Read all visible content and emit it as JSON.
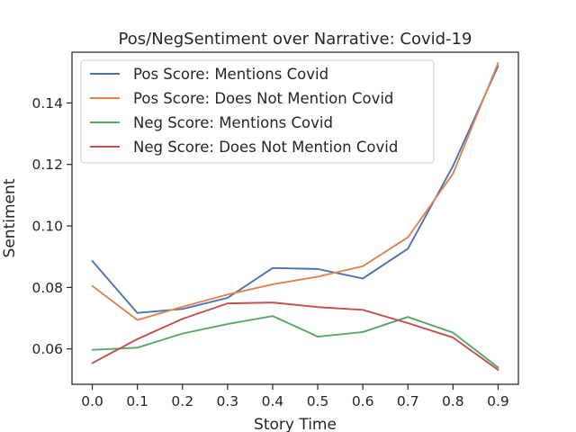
{
  "chart_data": {
    "type": "line",
    "title": "Pos/NegSentiment over Narrative: Covid-19",
    "xlabel": "Story Time",
    "ylabel": "Sentiment",
    "x": [
      0.0,
      0.1,
      0.2,
      0.3,
      0.4,
      0.5,
      0.6,
      0.7,
      0.8,
      0.9
    ],
    "xlim": [
      -0.045,
      0.945
    ],
    "ylim": [
      0.0485,
      0.1565
    ],
    "xticks": [
      "0.0",
      "0.1",
      "0.2",
      "0.3",
      "0.4",
      "0.5",
      "0.6",
      "0.7",
      "0.8",
      "0.9"
    ],
    "yticks": [
      0.06,
      0.08,
      0.1,
      0.12,
      0.14
    ],
    "ytick_labels": [
      "0.06",
      "0.08",
      "0.10",
      "0.12",
      "0.14"
    ],
    "grid": false,
    "legend_position": "top-left",
    "series": [
      {
        "name": "Pos Score: Mentions Covid",
        "color": "#4c72b0",
        "values": [
          0.0886,
          0.0717,
          0.073,
          0.0766,
          0.0863,
          0.086,
          0.0829,
          0.0926,
          0.1195,
          0.152
        ]
      },
      {
        "name": "Pos Score: Does Not Mention Covid",
        "color": "#dd8452",
        "values": [
          0.0805,
          0.0694,
          0.0737,
          0.0777,
          0.081,
          0.0835,
          0.0869,
          0.0963,
          0.117,
          0.153
        ]
      },
      {
        "name": "Neg Score: Mentions Covid",
        "color": "#55a868",
        "values": [
          0.0597,
          0.0604,
          0.065,
          0.0681,
          0.0707,
          0.064,
          0.0655,
          0.0704,
          0.0653,
          0.054
        ]
      },
      {
        "name": "Neg Score: Does Not Mention Covid",
        "color": "#c44e52",
        "values": [
          0.0554,
          0.0632,
          0.0698,
          0.0748,
          0.0751,
          0.0736,
          0.0727,
          0.0684,
          0.0637,
          0.0532
        ]
      }
    ]
  }
}
